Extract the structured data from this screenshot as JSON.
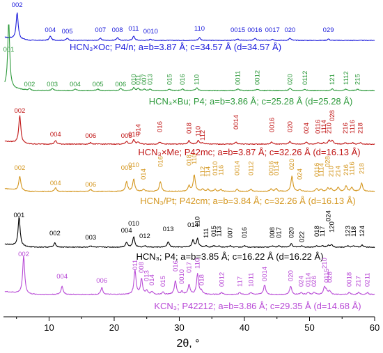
{
  "chart_data": {
    "type": "line",
    "xlabel": "2θ, °",
    "xlim": [
      3,
      60
    ],
    "x_ticks": [
      10,
      20,
      30,
      40,
      50,
      60
    ],
    "ylabel": "",
    "grid": false,
    "series": [
      {
        "name": "HCN₃×Oc; P4/n; a=b=3.87 Å; c=34.57 Å (d=34.57 Å)",
        "label": "HCN₃×Oc; P4/n; a=b=3.87 Å; c=34.57 Å (d=34.57 Å)",
        "color": "#1a1adb",
        "baseline": 58,
        "peaks": [
          {
            "x": 5.1,
            "h": 38,
            "label": "002"
          },
          {
            "x": 10.2,
            "h": 6,
            "label": "004"
          },
          {
            "x": 12.8,
            "h": 3,
            "label": "005"
          },
          {
            "x": 17.9,
            "h": 3,
            "label": "007"
          },
          {
            "x": 20.5,
            "h": 4,
            "label": "008"
          },
          {
            "x": 23.0,
            "h": 6,
            "label": "011"
          },
          {
            "x": 25.6,
            "h": 2,
            "label": "0010"
          },
          {
            "x": 33.1,
            "h": 4,
            "label": "110"
          },
          {
            "x": 39.0,
            "h": 2,
            "label": "0015"
          },
          {
            "x": 41.6,
            "h": 3,
            "label": "0016"
          },
          {
            "x": 44.3,
            "h": 2,
            "label": "0017"
          },
          {
            "x": 47.0,
            "h": 3,
            "label": "020"
          },
          {
            "x": 52.9,
            "h": 2,
            "label": "029"
          }
        ],
        "label_y": [
          10,
          46,
          48,
          46,
          46,
          44,
          48,
          44,
          46,
          46,
          46,
          46,
          46
        ]
      },
      {
        "name": "HCN₃×Bu; P4; a=b=3.86 Å; c=25.28 Å (d=25.28 Å)",
        "label": "HCN₃×Bu; P4; a=b=3.86 Å; c=25.28 Å (d=25.28 Å)",
        "color": "#2e9a3c",
        "baseline": 130,
        "peaks": [
          {
            "x": 3.8,
            "h": 95,
            "label": "001"
          },
          {
            "x": 7.0,
            "h": 3,
            "label": "002"
          },
          {
            "x": 10.5,
            "h": 3,
            "label": "003"
          },
          {
            "x": 14.0,
            "h": 2,
            "label": "004"
          },
          {
            "x": 17.5,
            "h": 2,
            "label": "005"
          },
          {
            "x": 21.0,
            "h": 3,
            "label": "006"
          },
          {
            "x": 23.0,
            "h": 4,
            "label": "010"
          },
          {
            "x": 23.7,
            "h": 3,
            "label": "011"
          },
          {
            "x": 24.6,
            "h": 2,
            "label": "007"
          },
          {
            "x": 25.5,
            "h": 2,
            "label": "013"
          },
          {
            "x": 28.5,
            "h": 2,
            "label": "015"
          },
          {
            "x": 30.5,
            "h": 2,
            "label": "016"
          },
          {
            "x": 32.7,
            "h": 4,
            "label": "110"
          },
          {
            "x": 39.0,
            "h": 2,
            "label": "0011"
          },
          {
            "x": 42.0,
            "h": 2,
            "label": "0012"
          },
          {
            "x": 47.0,
            "h": 3,
            "label": "020"
          },
          {
            "x": 49.3,
            "h": 2,
            "label": "0112"
          },
          {
            "x": 53.5,
            "h": 2,
            "label": "121"
          },
          {
            "x": 55.6,
            "h": 2,
            "label": "1112"
          },
          {
            "x": 57.4,
            "h": 2,
            "label": "215"
          }
        ],
        "label_y": [
          74,
          124,
          124,
          124,
          124,
          124,
          122,
          122,
          122,
          122,
          122,
          122,
          122,
          122,
          122,
          122,
          122,
          122,
          122,
          122
        ]
      },
      {
        "name": "HCN₃×Me; P42mc; a=b=3.87 Å; c=32.26 Å (d=16.13 Å)",
        "label": "HCN₃×Me; P42mc; a=b=3.87 Å; c=32.26 Å (d=16.13 Å)",
        "color": "#c01414",
        "baseline": 207,
        "peaks": [
          {
            "x": 5.5,
            "h": 40,
            "label": "002"
          },
          {
            "x": 11.0,
            "h": 5,
            "label": "004"
          },
          {
            "x": 16.4,
            "h": 2,
            "label": "006"
          },
          {
            "x": 21.9,
            "h": 4,
            "label": "008"
          },
          {
            "x": 23.0,
            "h": 6,
            "label": "010"
          },
          {
            "x": 23.7,
            "h": 3,
            "label": "014"
          },
          {
            "x": 27.0,
            "h": 3,
            "label": "016"
          },
          {
            "x": 31.5,
            "h": 5,
            "label": "018"
          },
          {
            "x": 32.9,
            "h": 5,
            "label": "110"
          },
          {
            "x": 33.6,
            "h": 2,
            "label": "112"
          },
          {
            "x": 38.7,
            "h": 3,
            "label": "0014"
          },
          {
            "x": 44.2,
            "h": 3,
            "label": "0016"
          },
          {
            "x": 47.0,
            "h": 4,
            "label": "020"
          },
          {
            "x": 49.5,
            "h": 3,
            "label": "024"
          },
          {
            "x": 51.3,
            "h": 2,
            "label": "0116"
          },
          {
            "x": 52.2,
            "h": 2,
            "label": "1114"
          },
          {
            "x": 53.0,
            "h": 5,
            "label": "210"
          },
          {
            "x": 53.5,
            "h": 5,
            "label": "028"
          },
          {
            "x": 55.5,
            "h": 2,
            "label": "216"
          },
          {
            "x": 56.6,
            "h": 2,
            "label": "1116"
          },
          {
            "x": 57.8,
            "h": 2,
            "label": "218"
          }
        ],
        "label_y": [
          162,
          196,
          198,
          198,
          196,
          194,
          190,
          192,
          196,
          202,
          186,
          190,
          190,
          192,
          192,
          192,
          192,
          174,
          192,
          192,
          192
        ]
      },
      {
        "name": "HCN₃/Pt; P42cm; a=b=3.84 Å; c=32.26 Å (d=16.13 Å)",
        "label": "HCN₃/Pt; P42cm; a=b=3.84 Å; c=32.26 Å (d=16.13 Å)",
        "color": "#d4961e",
        "baseline": 275,
        "peaks": [
          {
            "x": 5.5,
            "h": 20,
            "label": "002"
          },
          {
            "x": 11.0,
            "h": 5,
            "label": "004"
          },
          {
            "x": 16.4,
            "h": 3,
            "label": "006"
          },
          {
            "x": 21.9,
            "h": 14,
            "label": "008"
          },
          {
            "x": 23.0,
            "h": 18,
            "label": "010"
          },
          {
            "x": 24.5,
            "h": 3,
            "label": "014"
          },
          {
            "x": 27.1,
            "h": 14,
            "label": "016"
          },
          {
            "x": 31.5,
            "h": 8,
            "label": "018"
          },
          {
            "x": 32.3,
            "h": 24,
            "label": "110"
          },
          {
            "x": 33.6,
            "h": 3,
            "label": "112"
          },
          {
            "x": 34.4,
            "h": 3,
            "label": "114"
          },
          {
            "x": 35.5,
            "h": 3,
            "label": "0110"
          },
          {
            "x": 36.4,
            "h": 3,
            "label": "116"
          },
          {
            "x": 38.9,
            "h": 3,
            "label": "0014"
          },
          {
            "x": 41.0,
            "h": 3,
            "label": "0112"
          },
          {
            "x": 44.1,
            "h": 4,
            "label": "0016"
          },
          {
            "x": 44.9,
            "h": 4,
            "label": "0114"
          },
          {
            "x": 47.3,
            "h": 22,
            "label": "020"
          },
          {
            "x": 48.5,
            "h": 3,
            "label": "024"
          },
          {
            "x": 51.1,
            "h": 4,
            "label": "0116"
          },
          {
            "x": 51.8,
            "h": 3,
            "label": "1114"
          },
          {
            "x": 52.8,
            "h": 5,
            "label": "028"
          },
          {
            "x": 53.3,
            "h": 4,
            "label": "210"
          },
          {
            "x": 54.4,
            "h": 6,
            "label": "214"
          },
          {
            "x": 55.6,
            "h": 8,
            "label": "216"
          },
          {
            "x": 56.5,
            "h": 6,
            "label": "1116"
          },
          {
            "x": 58.0,
            "h": 12,
            "label": "218"
          }
        ],
        "label_y": [
          244,
          266,
          268,
          244,
          240,
          258,
          240,
          238,
          236,
          254,
          254,
          252,
          252,
          252,
          252,
          252,
          252,
          244,
          258,
          254,
          254,
          240,
          254,
          254,
          252,
          252,
          250
        ]
      },
      {
        "name": "HCN₃; P4; a=b=3.85 Å; c=16.22 Å (d=16.22 Å)",
        "label": "HCN₃; P4; a=b=3.85 Å; c=16.22 Å (d=16.22 Å)",
        "color": "#000000",
        "baseline": 355,
        "peaks": [
          {
            "x": 5.4,
            "h": 42,
            "label": "001"
          },
          {
            "x": 10.9,
            "h": 6,
            "label": "002"
          },
          {
            "x": 16.4,
            "h": 2,
            "label": "003"
          },
          {
            "x": 21.9,
            "h": 7,
            "label": "004"
          },
          {
            "x": 23.0,
            "h": 15,
            "label": "010"
          },
          {
            "x": 24.7,
            "h": 2,
            "label": "012"
          },
          {
            "x": 28.3,
            "h": 8,
            "label": "013"
          },
          {
            "x": 32.1,
            "h": 10,
            "label": "014"
          },
          {
            "x": 32.8,
            "h": 12,
            "label": "110"
          },
          {
            "x": 34.1,
            "h": 2,
            "label": "111"
          },
          {
            "x": 35.3,
            "h": 2,
            "label": "015"
          },
          {
            "x": 36.1,
            "h": 2,
            "label": "113"
          },
          {
            "x": 37.8,
            "h": 2,
            "label": "007"
          },
          {
            "x": 40.0,
            "h": 2,
            "label": "016"
          },
          {
            "x": 44.3,
            "h": 2,
            "label": "008"
          },
          {
            "x": 45.3,
            "h": 2,
            "label": "017"
          },
          {
            "x": 47.2,
            "h": 5,
            "label": "020"
          },
          {
            "x": 48.8,
            "h": 2,
            "label": "022"
          },
          {
            "x": 51.1,
            "h": 2,
            "label": "018"
          },
          {
            "x": 52.0,
            "h": 2,
            "label": "117"
          },
          {
            "x": 52.9,
            "h": 3,
            "label": "024"
          },
          {
            "x": 53.4,
            "h": 3,
            "label": "120"
          },
          {
            "x": 55.9,
            "h": 2,
            "label": "123"
          },
          {
            "x": 56.8,
            "h": 2,
            "label": "118"
          },
          {
            "x": 58.1,
            "h": 3,
            "label": "124"
          }
        ],
        "label_y": [
          312,
          338,
          344,
          334,
          324,
          342,
          332,
          326,
          326,
          342,
          340,
          340,
          342,
          342,
          342,
          342,
          342,
          348,
          340,
          340,
          318,
          334,
          340,
          340,
          340
        ]
      },
      {
        "name": "KCN₃; P42212; a=b=3.86 Å; c=29.35 Å (d=14.68 Å)",
        "label": "KCN₃; P42212; a=b=3.86 Å; c=29.35 Å (d=14.68 Å)",
        "color": "#b84ad6",
        "baseline": 423,
        "peaks": [
          {
            "x": 6.1,
            "h": 55,
            "label": "002"
          },
          {
            "x": 12.0,
            "h": 12,
            "label": "004"
          },
          {
            "x": 18.1,
            "h": 10,
            "label": "006"
          },
          {
            "x": 23.2,
            "h": 35,
            "label": "011"
          },
          {
            "x": 24.2,
            "h": 22,
            "label": "008"
          },
          {
            "x": 25.0,
            "h": 5,
            "label": "013"
          },
          {
            "x": 25.8,
            "h": 4,
            "label": "014"
          },
          {
            "x": 27.5,
            "h": 3,
            "label": "015"
          },
          {
            "x": 29.4,
            "h": 20,
            "label": "016"
          },
          {
            "x": 30.4,
            "h": 4,
            "label": "0010"
          },
          {
            "x": 31.5,
            "h": 14,
            "label": "017"
          },
          {
            "x": 32.8,
            "h": 30,
            "label": "110"
          },
          {
            "x": 33.4,
            "h": 5,
            "label": "018"
          },
          {
            "x": 36.5,
            "h": 3,
            "label": "0012"
          },
          {
            "x": 39.3,
            "h": 3,
            "label": "117"
          },
          {
            "x": 41.0,
            "h": 3,
            "label": "1011"
          },
          {
            "x": 43.1,
            "h": 14,
            "label": "0014"
          },
          {
            "x": 47.1,
            "h": 12,
            "label": "020"
          },
          {
            "x": 48.7,
            "h": 3,
            "label": "024"
          },
          {
            "x": 49.8,
            "h": 3,
            "label": "0114"
          },
          {
            "x": 50.7,
            "h": 3,
            "label": "026"
          },
          {
            "x": 52.3,
            "h": 10,
            "label": "210"
          },
          {
            "x": 52.6,
            "h": 5,
            "label": "0115"
          },
          {
            "x": 53.1,
            "h": 5,
            "label": "028"
          },
          {
            "x": 56.1,
            "h": 3,
            "label": "0018"
          },
          {
            "x": 57.5,
            "h": 3,
            "label": "217"
          },
          {
            "x": 58.9,
            "h": 3,
            "label": "0211"
          }
        ],
        "label_y": [
          368,
          400,
          406,
          388,
          392,
          404,
          410,
          412,
          390,
          408,
          392,
          386,
          410,
          412,
          412,
          412,
          404,
          404,
          412,
          412,
          412,
          386,
          406,
          406,
          412,
          412,
          412
        ]
      }
    ]
  },
  "annotations": {
    "lattice_sep": "; ",
    "ab_prefix": "a=b=",
    "c_prefix": "c="
  }
}
